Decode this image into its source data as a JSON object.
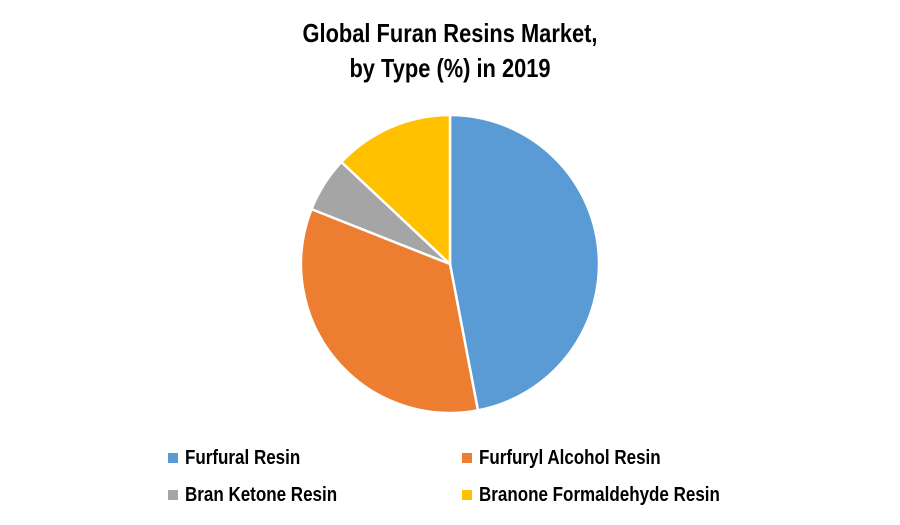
{
  "page": {
    "background_color": "#FFFFFF"
  },
  "title_lines": [
    "Global Furan Resins Market,",
    "by Type (%) in 2019"
  ],
  "chart_data": {
    "type": "pie",
    "title": "Global Furan Resins Market, by Type (%) in 2019",
    "values_unit": "%",
    "start_angle_deg": 0,
    "direction": "clockwise",
    "slice_border_color": "#FFFFFF",
    "legend_position": "bottom",
    "legend_columns": 2,
    "segments": [
      {
        "label": "Furfural Resin",
        "value": 47,
        "color": "#5B9BD5"
      },
      {
        "label": "Furfuryl Alcohol Resin",
        "value": 34,
        "color": "#ED7D31"
      },
      {
        "label": "Bran Ketone Resin",
        "value": 6,
        "color": "#A5A5A5"
      },
      {
        "label": "Branone Formaldehyde Resin",
        "value": 13,
        "color": "#FFC000"
      }
    ]
  }
}
